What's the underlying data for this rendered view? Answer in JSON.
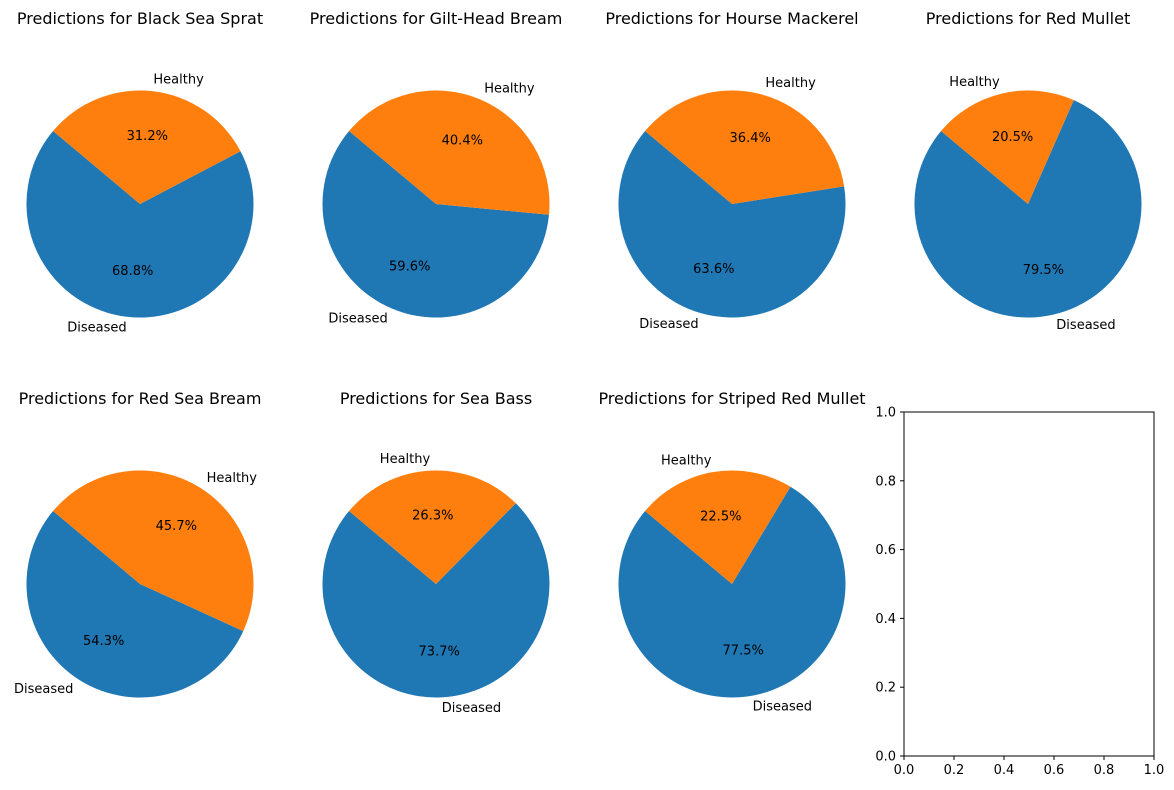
{
  "colors": {
    "diseased": "#1f77b4",
    "healthy": "#ff7f0e"
  },
  "chart_data": [
    {
      "type": "pie",
      "title": "Predictions for Black Sea Sprat",
      "labels": [
        "Diseased",
        "Healthy"
      ],
      "values": [
        68.8,
        31.2
      ],
      "pct_labels": [
        "68.8%",
        "31.2%"
      ]
    },
    {
      "type": "pie",
      "title": "Predictions for Gilt-Head Bream",
      "labels": [
        "Diseased",
        "Healthy"
      ],
      "values": [
        59.6,
        40.4
      ],
      "pct_labels": [
        "59.6%",
        "40.4%"
      ]
    },
    {
      "type": "pie",
      "title": "Predictions for Hourse Mackerel",
      "labels": [
        "Diseased",
        "Healthy"
      ],
      "values": [
        63.6,
        36.4
      ],
      "pct_labels": [
        "63.6%",
        "36.4%"
      ]
    },
    {
      "type": "pie",
      "title": "Predictions for Red Mullet",
      "labels": [
        "Diseased",
        "Healthy"
      ],
      "values": [
        79.5,
        20.5
      ],
      "pct_labels": [
        "79.5%",
        "20.5%"
      ]
    },
    {
      "type": "pie",
      "title": "Predictions for Red Sea Bream",
      "labels": [
        "Diseased",
        "Healthy"
      ],
      "values": [
        54.3,
        45.7
      ],
      "pct_labels": [
        "54.3%",
        "45.7%"
      ]
    },
    {
      "type": "pie",
      "title": "Predictions for Sea Bass",
      "labels": [
        "Diseased",
        "Healthy"
      ],
      "values": [
        73.7,
        26.3
      ],
      "pct_labels": [
        "73.7%",
        "26.3%"
      ]
    },
    {
      "type": "pie",
      "title": "Predictions for Striped Red Mullet",
      "labels": [
        "Diseased",
        "Healthy"
      ],
      "values": [
        77.5,
        22.5
      ],
      "pct_labels": [
        "77.5%",
        "22.5%"
      ]
    },
    {
      "type": "empty-axes",
      "title": "",
      "xlim": [
        0.0,
        1.0
      ],
      "ylim": [
        0.0,
        1.0
      ],
      "xticks": [
        "0.0",
        "0.2",
        "0.4",
        "0.6",
        "0.8",
        "1.0"
      ],
      "yticks": [
        "0.0",
        "0.2",
        "0.4",
        "0.6",
        "0.8",
        "1.0"
      ]
    }
  ]
}
